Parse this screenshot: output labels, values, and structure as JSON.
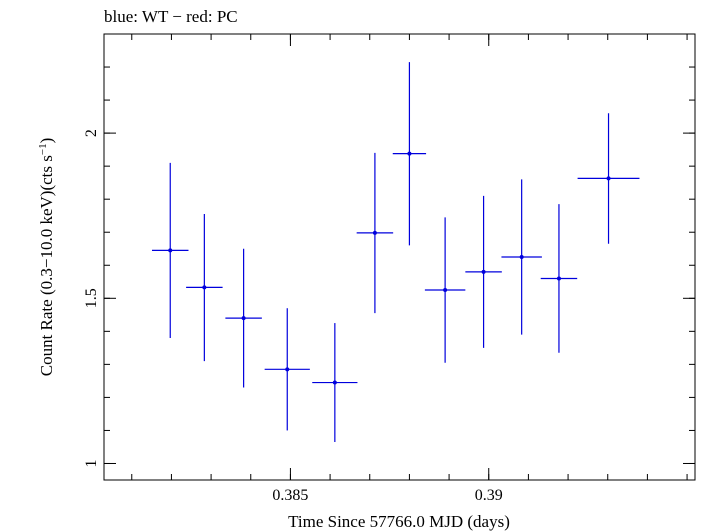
{
  "chart_data": {
    "type": "scatter",
    "title": "blue: WT − red: PC",
    "xlabel": "Time Since 57766.0 MJD (days)",
    "ylabel_main": "Count Rate (0.3−10.0 keV)(cts s",
    "ylabel_sup": "−1",
    "ylabel_close": ")",
    "xlim": [
      0.3803,
      0.3952
    ],
    "ylim": [
      0.95,
      2.3
    ],
    "x_ticks": [
      {
        "value": 0.385,
        "label": "0.385"
      },
      {
        "value": 0.39,
        "label": "0.39"
      }
    ],
    "y_ticks": [
      {
        "value": 1,
        "label": "1"
      },
      {
        "value": 1.5,
        "label": "1.5"
      },
      {
        "value": 2,
        "label": "2"
      }
    ],
    "x_minor_step": 0.001,
    "y_minor_step": 0.1,
    "grid": false,
    "series": [
      {
        "color": "#0000dd",
        "points": [
          {
            "x": 0.38197,
            "xerr": 0.00046,
            "y": 1.645,
            "ylo": 1.38,
            "yhi": 1.91
          },
          {
            "x": 0.38283,
            "xerr": 0.00046,
            "y": 1.533,
            "ylo": 1.31,
            "yhi": 1.755
          },
          {
            "x": 0.38382,
            "xerr": 0.00046,
            "y": 1.44,
            "ylo": 1.23,
            "yhi": 1.65
          },
          {
            "x": 0.38492,
            "xerr": 0.00057,
            "y": 1.285,
            "ylo": 1.1,
            "yhi": 1.47
          },
          {
            "x": 0.38612,
            "xerr": 0.00057,
            "y": 1.245,
            "ylo": 1.065,
            "yhi": 1.425
          },
          {
            "x": 0.38713,
            "xerr": 0.00046,
            "y": 1.698,
            "ylo": 1.455,
            "yhi": 1.94
          },
          {
            "x": 0.388,
            "xerr": 0.00042,
            "y": 1.938,
            "ylo": 1.66,
            "yhi": 2.215
          },
          {
            "x": 0.3889,
            "xerr": 0.00051,
            "y": 1.525,
            "ylo": 1.305,
            "yhi": 1.745
          },
          {
            "x": 0.38987,
            "xerr": 0.00046,
            "y": 1.58,
            "ylo": 1.35,
            "yhi": 1.81
          },
          {
            "x": 0.39083,
            "xerr": 0.00051,
            "y": 1.625,
            "ylo": 1.39,
            "yhi": 1.86
          },
          {
            "x": 0.39177,
            "xerr": 0.00046,
            "y": 1.56,
            "ylo": 1.335,
            "yhi": 1.785
          },
          {
            "x": 0.39302,
            "xerr": 0.00078,
            "y": 1.863,
            "ylo": 1.665,
            "yhi": 2.06
          }
        ]
      }
    ]
  }
}
